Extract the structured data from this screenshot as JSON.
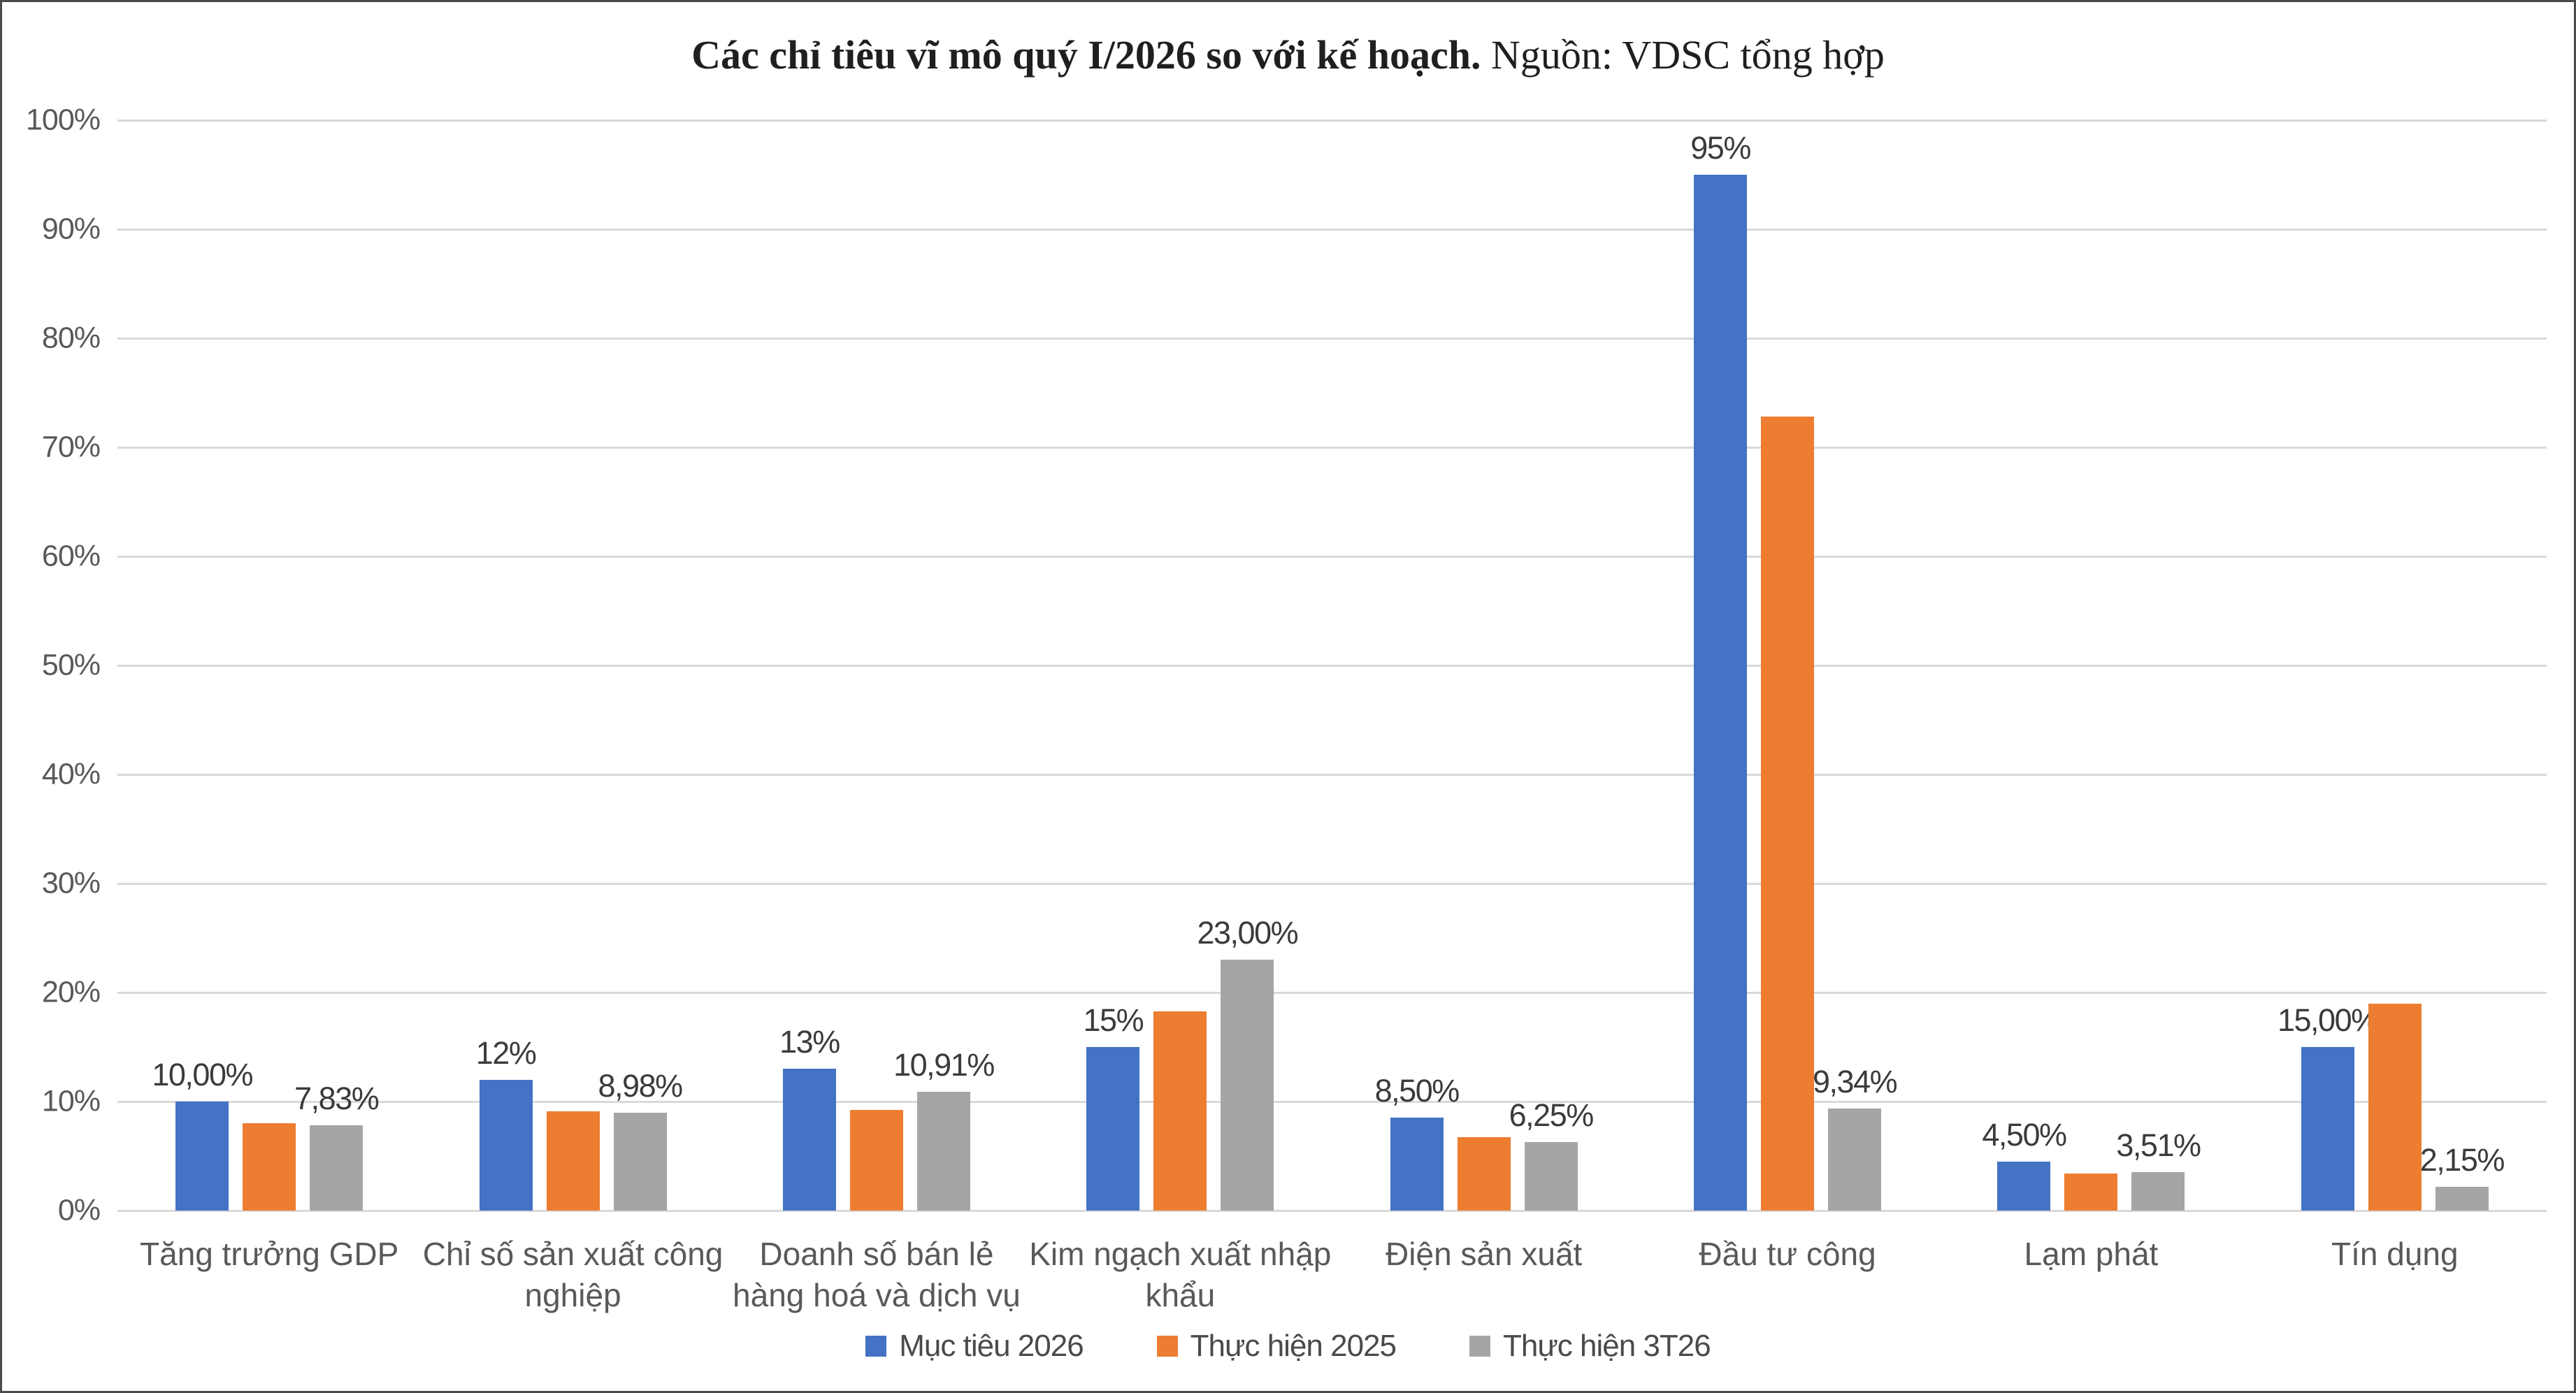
{
  "title": {
    "main": "Các chỉ tiêu vĩ mô quý I/2026 so với kế hoạch.",
    "source": " Nguồn: VDSC tổng hợp"
  },
  "chart_data": {
    "type": "bar",
    "title": "Các chỉ tiêu vĩ mô quý I/2026 so với kế hoạch. Nguồn: VDSC tổng hợp",
    "xlabel": "",
    "ylabel": "",
    "ylim": [
      0,
      100
    ],
    "y_ticks": [
      "0%",
      "10%",
      "20%",
      "30%",
      "40%",
      "50%",
      "60%",
      "70%",
      "80%",
      "90%",
      "100%"
    ],
    "grid": true,
    "legend_position": "bottom",
    "categories": [
      "Tăng trưởng GDP",
      "Chỉ số sản xuất công nghiệp",
      "Doanh số bán lẻ hàng hoá và dịch vụ",
      "Kim ngạch xuất nhập khẩu",
      "Điện sản xuất",
      "Đầu tư công",
      "Lạm phát",
      "Tín dụng"
    ],
    "series": [
      {
        "name": "Mục tiêu 2026",
        "color": "#4472C4",
        "values": [
          10.0,
          12.0,
          13.0,
          15.0,
          8.5,
          95.0,
          4.5,
          15.0
        ],
        "labels": [
          "10,00%",
          "12%",
          "13%",
          "15%",
          "8,50%",
          "95%",
          "4,50%",
          "15,00%"
        ]
      },
      {
        "name": "Thực hiện 2025",
        "color": "#ED7D31",
        "values": [
          8.0,
          9.1,
          9.2,
          18.3,
          6.7,
          72.8,
          3.4,
          19.0
        ],
        "labels": [
          "",
          "",
          "",
          "",
          "",
          "",
          "",
          ""
        ]
      },
      {
        "name": "Thực hiện 3T26",
        "color": "#A5A5A5",
        "values": [
          7.83,
          8.98,
          10.91,
          23.0,
          6.25,
          9.34,
          3.51,
          2.15
        ],
        "labels": [
          "7,83%",
          "8,98%",
          "10,91%",
          "23,00%",
          "6,25%",
          "9,34%",
          "3,51%",
          "2,15%"
        ]
      }
    ],
    "colors": {
      "gridline": "#d9d9d9",
      "axis_text": "#595959",
      "data_label_text": "#3b3b3b",
      "title_text": "#1f1f1f"
    }
  }
}
